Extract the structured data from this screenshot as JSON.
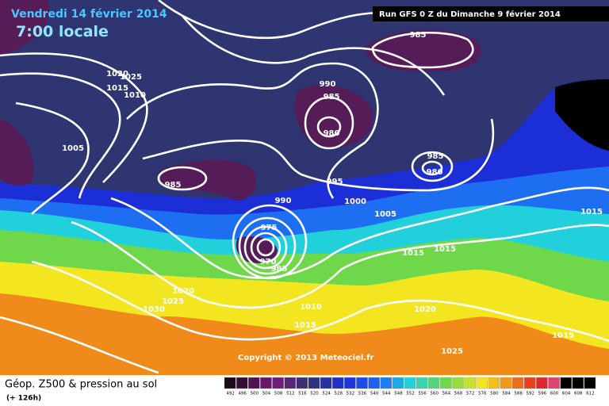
{
  "header": {
    "date": "Vendredi 14 février 2014",
    "time": "7:00 locale",
    "run": "Run GFS 0 Z du Dimanche 9 février 2014"
  },
  "footer": {
    "copyright": "Copyright © 2013 Meteociel.fr",
    "title": "Géop. Z500 & pression au sol",
    "lead_time": "(+ 126h)"
  },
  "legend": {
    "labels": [
      "492",
      "496",
      "500",
      "504",
      "508",
      "512",
      "516",
      "520",
      "524",
      "528",
      "532",
      "536",
      "540",
      "544",
      "548",
      "552",
      "556",
      "560",
      "564",
      "568",
      "572",
      "576",
      "580",
      "584",
      "588",
      "592",
      "596",
      "600",
      "604",
      "608",
      "612"
    ]
  },
  "isobar_labels": [
    "1025",
    "1020",
    "1015",
    "1010",
    "1005",
    "985",
    "985",
    "990",
    "985",
    "980",
    "985",
    "980",
    "995",
    "990",
    "1000",
    "1005",
    "975",
    "970",
    "985",
    "1015",
    "1015",
    "1015",
    "1020",
    "1025",
    "1030",
    "1010",
    "1015",
    "1020",
    "1025",
    "1015"
  ]
}
